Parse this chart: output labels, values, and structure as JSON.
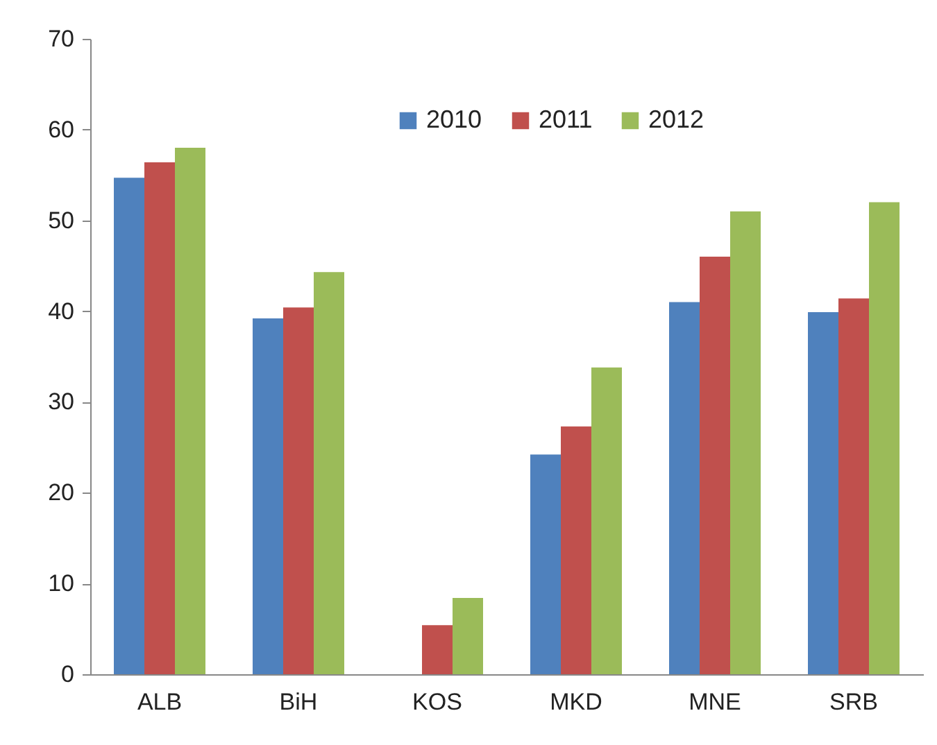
{
  "chart_data": {
    "type": "bar",
    "categories": [
      "ALB",
      "BiH",
      "KOS",
      "MKD",
      "MNE",
      "SRB"
    ],
    "series": [
      {
        "name": "2010",
        "color": "#4f81bd",
        "values": [
          54.7,
          39.2,
          null,
          24.2,
          41,
          39.9
        ]
      },
      {
        "name": "2011",
        "color": "#c0504d",
        "values": [
          56.4,
          40.4,
          5.4,
          27.3,
          46,
          41.4
        ]
      },
      {
        "name": "2012",
        "color": "#9bbb59",
        "values": [
          58,
          44.3,
          8.4,
          33.8,
          51,
          52
        ]
      }
    ],
    "ylim": [
      0,
      70
    ],
    "yticks": [
      0,
      10,
      20,
      30,
      40,
      50,
      60,
      70
    ],
    "grid": false,
    "legend": "top"
  }
}
